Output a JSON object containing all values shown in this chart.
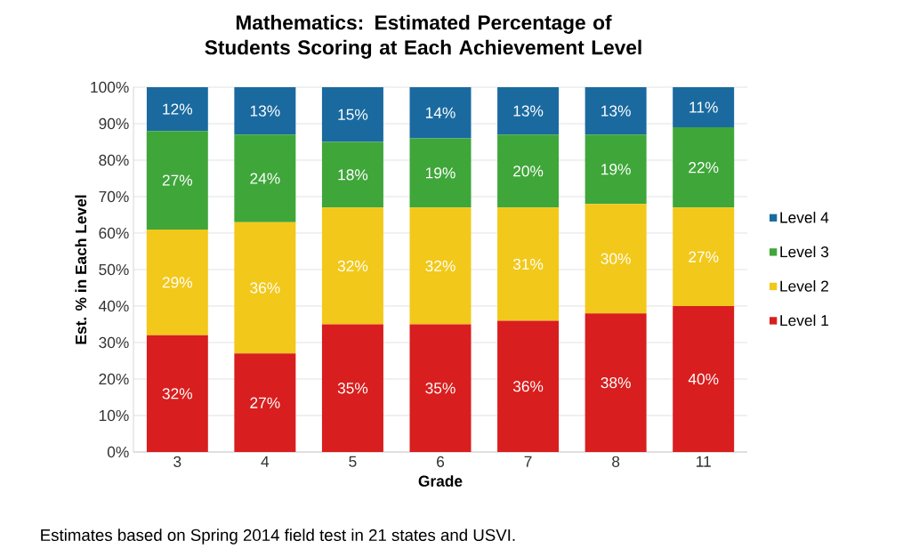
{
  "chart_data": {
    "type": "bar",
    "stacked": true,
    "title": "Mathematics:  Estimated Percentage of Students Scoring at Each Achievement Level",
    "xlabel": "Grade",
    "ylabel": "Est. % in Each Level",
    "categories": [
      "3",
      "4",
      "5",
      "6",
      "7",
      "8",
      "11"
    ],
    "series": [
      {
        "name": "Level 1",
        "color": "#d81e1e",
        "values": [
          32,
          27,
          35,
          35,
          36,
          38,
          40
        ],
        "value_labels": [
          "32%",
          "27%",
          "35%",
          "35%",
          "36%",
          "38%",
          "40%"
        ]
      },
      {
        "name": "Level 2",
        "color": "#f2c81a",
        "values": [
          29,
          36,
          32,
          32,
          31,
          30,
          27
        ],
        "value_labels": [
          "29%",
          "36%",
          "32%",
          "32%",
          "31%",
          "30%",
          "27%"
        ]
      },
      {
        "name": "Level 3",
        "color": "#3fa63a",
        "values": [
          27,
          24,
          18,
          19,
          20,
          19,
          22
        ],
        "value_labels": [
          "27%",
          "24%",
          "18%",
          "19%",
          "20%",
          "19%",
          "22%"
        ]
      },
      {
        "name": "Level 4",
        "color": "#1a6aa0",
        "values": [
          12,
          13,
          15,
          14,
          13,
          13,
          11
        ],
        "value_labels": [
          "12%",
          "13%",
          "15%",
          "14%",
          "13%",
          "13%",
          "11%"
        ]
      }
    ],
    "ylim": [
      0,
      100
    ],
    "yticks": [
      {
        "value": 0,
        "label": "0%"
      },
      {
        "value": 10,
        "label": "10%"
      },
      {
        "value": 20,
        "label": "20%"
      },
      {
        "value": 30,
        "label": "30%"
      },
      {
        "value": 40,
        "label": "40%"
      },
      {
        "value": 50,
        "label": "50%"
      },
      {
        "value": 60,
        "label": "60%"
      },
      {
        "value": 70,
        "label": "70%"
      },
      {
        "value": 80,
        "label": "80%"
      },
      {
        "value": 90,
        "label": "90%"
      },
      {
        "value": 100,
        "label": "100%"
      }
    ],
    "grid": "y",
    "legend": "right",
    "annotations": [
      "Estimates based on Spring 2014 field test in 21 states and USVI."
    ]
  }
}
